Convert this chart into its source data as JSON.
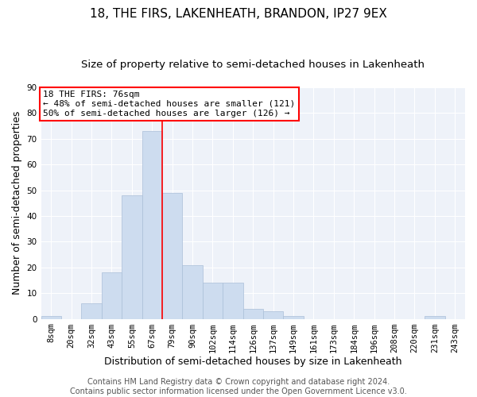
{
  "title": "18, THE FIRS, LAKENHEATH, BRANDON, IP27 9EX",
  "subtitle": "Size of property relative to semi-detached houses in Lakenheath",
  "xlabel": "Distribution of semi-detached houses by size in Lakenheath",
  "ylabel": "Number of semi-detached properties",
  "bin_labels": [
    "8sqm",
    "20sqm",
    "32sqm",
    "43sqm",
    "55sqm",
    "67sqm",
    "79sqm",
    "90sqm",
    "102sqm",
    "114sqm",
    "126sqm",
    "137sqm",
    "149sqm",
    "161sqm",
    "173sqm",
    "184sqm",
    "196sqm",
    "208sqm",
    "220sqm",
    "231sqm",
    "243sqm"
  ],
  "bar_heights": [
    1,
    0,
    6,
    18,
    48,
    73,
    49,
    21,
    14,
    14,
    4,
    3,
    1,
    0,
    0,
    0,
    0,
    0,
    0,
    1,
    0
  ],
  "bar_color": "#cddcef",
  "bar_edge_color": "#aabfd8",
  "vline_color": "red",
  "vline_x": 6.0,
  "annotation_title": "18 THE FIRS: 76sqm",
  "annotation_line1": "← 48% of semi-detached houses are smaller (121)",
  "annotation_line2": "50% of semi-detached houses are larger (126) →",
  "annotation_box_color": "white",
  "annotation_box_edge_color": "red",
  "ylim": [
    0,
    90
  ],
  "yticks": [
    0,
    10,
    20,
    30,
    40,
    50,
    60,
    70,
    80,
    90
  ],
  "footer_line1": "Contains HM Land Registry data © Crown copyright and database right 2024.",
  "footer_line2": "Contains public sector information licensed under the Open Government Licence v3.0.",
  "bg_color": "#eef2f9",
  "grid_color": "white",
  "title_fontsize": 11,
  "subtitle_fontsize": 9.5,
  "axis_label_fontsize": 9,
  "tick_fontsize": 7.5,
  "annotation_fontsize": 8,
  "footer_fontsize": 7
}
